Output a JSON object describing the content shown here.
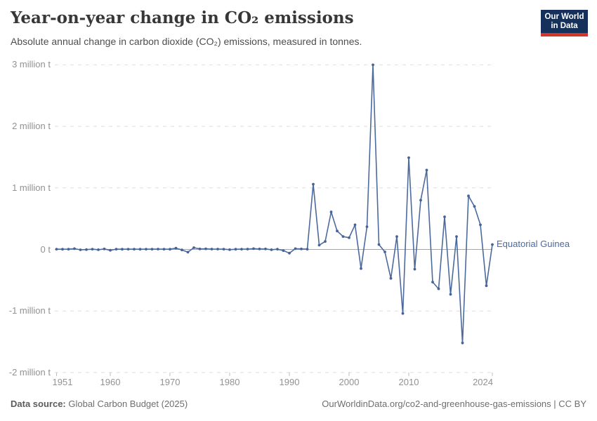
{
  "header": {
    "title": "Year-on-year change in CO₂ emissions",
    "subtitle": "Absolute annual change in carbon dioxide (CO₂) emissions, measured in tonnes."
  },
  "logo": {
    "line1": "Our World",
    "line2": "in Data"
  },
  "chart_data": {
    "type": "line",
    "title": "Year-on-year change in CO₂ emissions",
    "entity_label": "Equatorial Guinea",
    "unit": "million tonnes",
    "xlabel": "",
    "ylabel": "",
    "xlim": [
      1951,
      2024
    ],
    "ylim": [
      -2,
      3
    ],
    "grid": "dashed-horizontal",
    "legend_position": "end-of-line-label",
    "x": [
      1951,
      1952,
      1953,
      1954,
      1955,
      1956,
      1957,
      1958,
      1959,
      1960,
      1961,
      1962,
      1963,
      1964,
      1965,
      1966,
      1967,
      1968,
      1969,
      1970,
      1971,
      1972,
      1973,
      1974,
      1975,
      1976,
      1977,
      1978,
      1979,
      1980,
      1981,
      1982,
      1983,
      1984,
      1985,
      1986,
      1987,
      1988,
      1989,
      1990,
      1991,
      1992,
      1993,
      1994,
      1995,
      1996,
      1997,
      1998,
      1999,
      2000,
      2001,
      2002,
      2003,
      2004,
      2005,
      2006,
      2007,
      2008,
      2009,
      2010,
      2011,
      2012,
      2013,
      2014,
      2015,
      2016,
      2017,
      2018,
      2019,
      2020,
      2021,
      2022,
      2023,
      2024
    ],
    "values": [
      0.004,
      0.003,
      0.005,
      0.012,
      -0.006,
      -0.002,
      0.005,
      -0.004,
      0.008,
      -0.014,
      0.004,
      0.003,
      0.004,
      0.004,
      0.003,
      0.004,
      0.004,
      0.006,
      0.004,
      0.003,
      0.02,
      -0.008,
      -0.045,
      0.028,
      0.008,
      0.01,
      0.006,
      0.006,
      0.004,
      -0.003,
      0.003,
      0.004,
      0.006,
      0.012,
      0.008,
      0.008,
      -0.004,
      0.004,
      -0.018,
      -0.06,
      0.012,
      0.008,
      0.005,
      1.06,
      0.07,
      0.13,
      0.61,
      0.3,
      0.21,
      0.19,
      0.4,
      -0.31,
      0.37,
      3.0,
      0.08,
      -0.04,
      -0.47,
      0.21,
      -1.04,
      1.49,
      -0.32,
      0.8,
      1.29,
      -0.53,
      -0.64,
      0.53,
      -0.73,
      0.21,
      -1.52,
      0.87,
      0.7,
      0.4,
      -0.59,
      0.08
    ],
    "y_ticks": [
      {
        "value": 3,
        "label": "3 million t"
      },
      {
        "value": 2,
        "label": "2 million t"
      },
      {
        "value": 1,
        "label": "1 million t"
      },
      {
        "value": 0,
        "label": "0 t"
      },
      {
        "value": -1,
        "label": "-1 million t"
      },
      {
        "value": -2,
        "label": "-2 million t"
      }
    ],
    "x_ticks": [
      {
        "value": 1951,
        "label": "1951"
      },
      {
        "value": 1960,
        "label": "1960"
      },
      {
        "value": 1970,
        "label": "1970"
      },
      {
        "value": 1980,
        "label": "1980"
      },
      {
        "value": 1990,
        "label": "1990"
      },
      {
        "value": 2000,
        "label": "2000"
      },
      {
        "value": 2010,
        "label": "2010"
      },
      {
        "value": 2024,
        "label": "2024"
      }
    ],
    "colors": {
      "line": "#4C6A9C",
      "marker": "#46639B",
      "entity_label": "#4C6A9C",
      "gridline": "#dedede",
      "zero_line": "#a7a7a7",
      "tick_mark": "#bdbdbd",
      "axis_text": "#929292"
    }
  },
  "footer": {
    "source_label": "Data source:",
    "source_value": " Global Carbon Budget (2025)",
    "link": "OurWorldinData.org/co2-and-greenhouse-gas-emissions | CC BY"
  }
}
